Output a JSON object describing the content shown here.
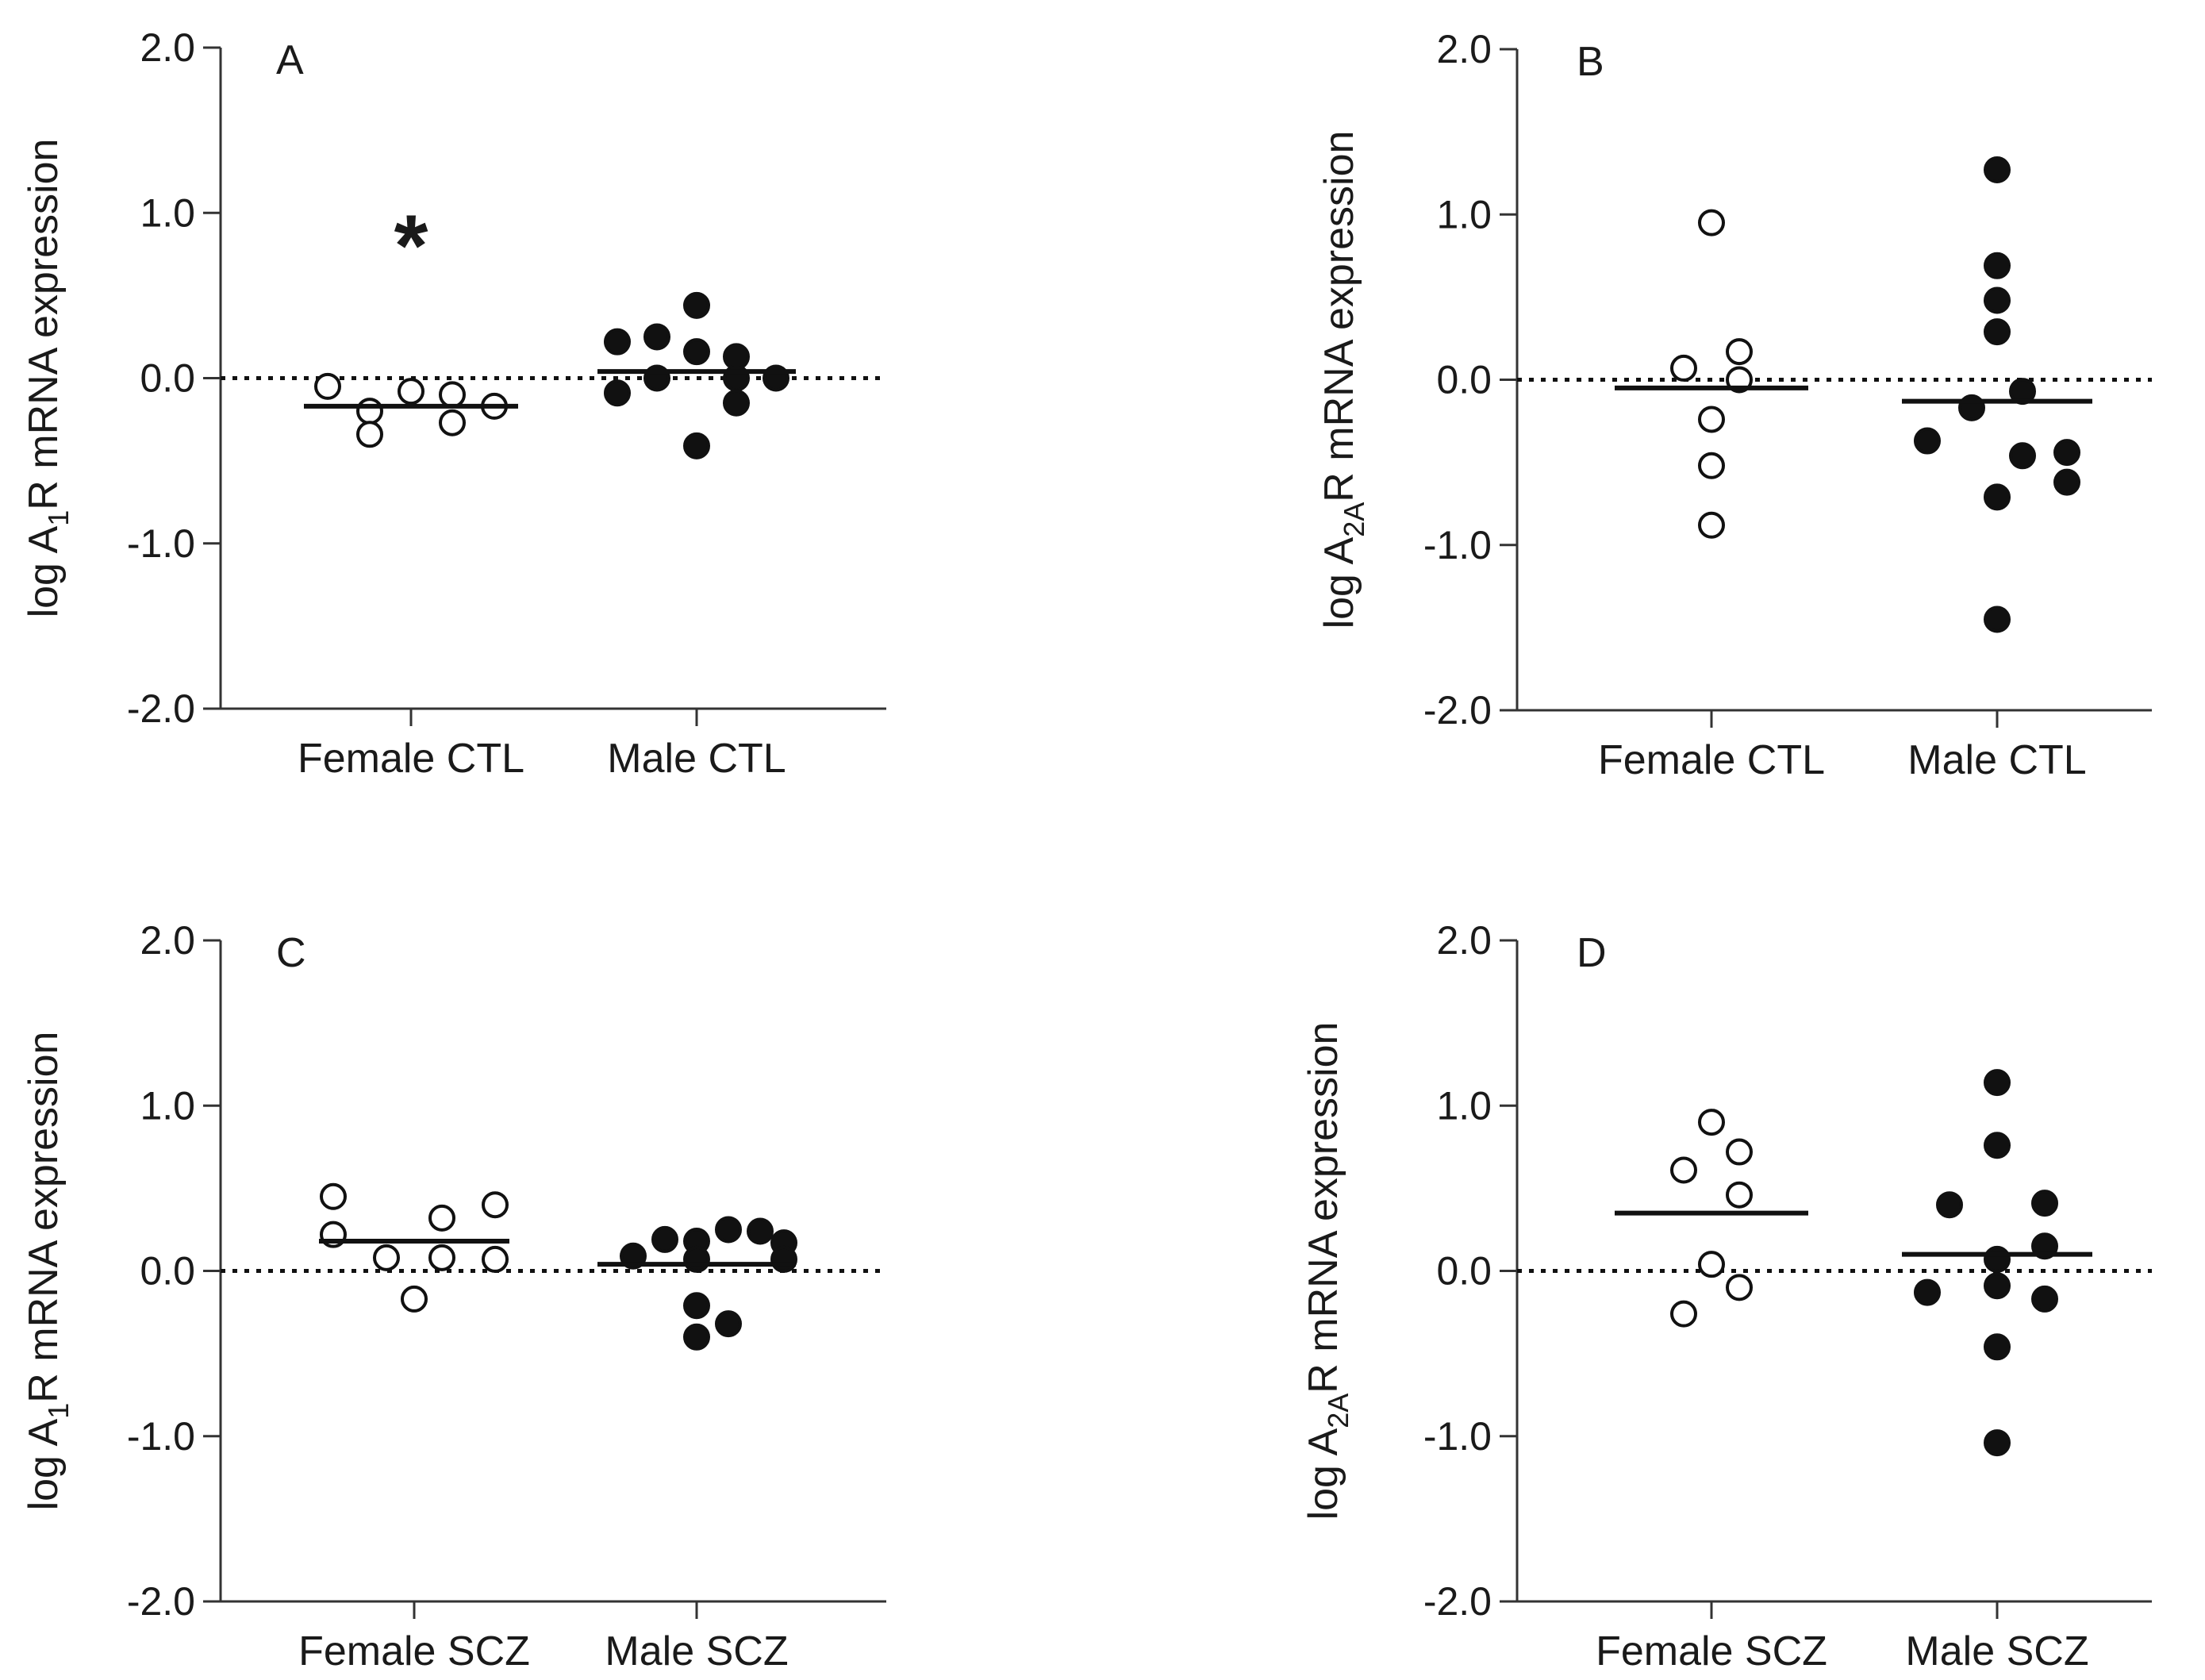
{
  "chart_data": [
    {
      "id": "A",
      "type": "scatter",
      "panel_label": "A",
      "ylabel_parts": [
        "log A",
        "1",
        "R mRNA expression"
      ],
      "ylim": [
        -2.0,
        2.0
      ],
      "yticks": [
        2.0,
        1.0,
        0.0,
        -1.0,
        -2.0
      ],
      "ytick_labels": [
        "2.0",
        "1.0",
        "0.0",
        "-1.0",
        "-2.0"
      ],
      "reference_line": 0.0,
      "categories": [
        "Female CTL",
        "Male CTL"
      ],
      "annotation": "*",
      "series": [
        {
          "name": "Female CTL",
          "filled": false,
          "mean": -0.17,
          "values": [
            -0.05,
            -0.2,
            -0.34,
            -0.08,
            -0.27,
            -0.1,
            -0.17
          ]
        },
        {
          "name": "Male CTL",
          "filled": true,
          "mean": 0.04,
          "values": [
            0.22,
            -0.09,
            0.25,
            0.0,
            0.44,
            0.16,
            -0.41,
            0.0,
            0.13,
            -0.15,
            0.0
          ]
        }
      ]
    },
    {
      "id": "B",
      "type": "scatter",
      "panel_label": "B",
      "ylabel_parts": [
        "log A",
        "2A",
        "R mRNA expression"
      ],
      "ylim": [
        -2.0,
        2.0
      ],
      "yticks": [
        2.0,
        1.0,
        0.0,
        -1.0,
        -2.0
      ],
      "ytick_labels": [
        "2.0",
        "1.0",
        "0.0",
        "-1.0",
        "-2.0"
      ],
      "reference_line": 0.0,
      "categories": [
        "Female CTL",
        "Male CTL"
      ],
      "series": [
        {
          "name": "Female CTL",
          "filled": false,
          "mean": -0.05,
          "values": [
            0.95,
            0.07,
            -0.24,
            -0.52,
            -0.88,
            0.17,
            0.0
          ]
        },
        {
          "name": "Male CTL",
          "filled": true,
          "mean": -0.13,
          "values": [
            1.27,
            0.69,
            0.48,
            0.29,
            -0.17,
            -0.37,
            -0.07,
            -0.46,
            -0.71,
            -1.45,
            -0.44,
            -0.62
          ]
        }
      ]
    },
    {
      "id": "C",
      "type": "scatter",
      "panel_label": "C",
      "ylabel_parts": [
        "log A",
        "1",
        "R mRNA expression"
      ],
      "ylim": [
        -2.0,
        2.0
      ],
      "yticks": [
        2.0,
        1.0,
        0.0,
        -1.0,
        -2.0
      ],
      "ytick_labels": [
        "2.0",
        "1.0",
        "0.0",
        "-1.0",
        "-2.0"
      ],
      "reference_line": 0.0,
      "categories": [
        "Female SCZ",
        "Male SCZ"
      ],
      "series": [
        {
          "name": "Female SCZ",
          "filled": false,
          "mean": 0.18,
          "values": [
            0.45,
            0.22,
            0.08,
            -0.17,
            0.32,
            0.08,
            0.4,
            0.07
          ]
        },
        {
          "name": "Male SCZ",
          "filled": true,
          "mean": 0.04,
          "values": [
            0.09,
            0.19,
            0.18,
            -0.21,
            -0.4,
            0.07,
            0.25,
            -0.32,
            0.24,
            0.17,
            0.07
          ]
        }
      ]
    },
    {
      "id": "D",
      "type": "scatter",
      "panel_label": "D",
      "ylabel_parts": [
        "log A",
        "2A",
        "R mRNA expression"
      ],
      "ylim": [
        -2.0,
        2.0
      ],
      "yticks": [
        2.0,
        1.0,
        0.0,
        -1.0,
        -2.0
      ],
      "ytick_labels": [
        "2.0",
        "1.0",
        "0.0",
        "-1.0",
        "-2.0"
      ],
      "reference_line": 0.0,
      "categories": [
        "Female SCZ",
        "Male SCZ"
      ],
      "series": [
        {
          "name": "Female SCZ",
          "filled": false,
          "mean": 0.35,
          "values": [
            0.61,
            -0.26,
            0.9,
            0.04,
            0.72,
            0.46,
            -0.1
          ]
        },
        {
          "name": "Male SCZ",
          "filled": true,
          "mean": 0.1,
          "values": [
            -0.13,
            0.4,
            1.14,
            0.76,
            0.07,
            -0.09,
            -0.46,
            -1.04,
            0.41,
            0.15,
            -0.17
          ]
        }
      ]
    }
  ]
}
